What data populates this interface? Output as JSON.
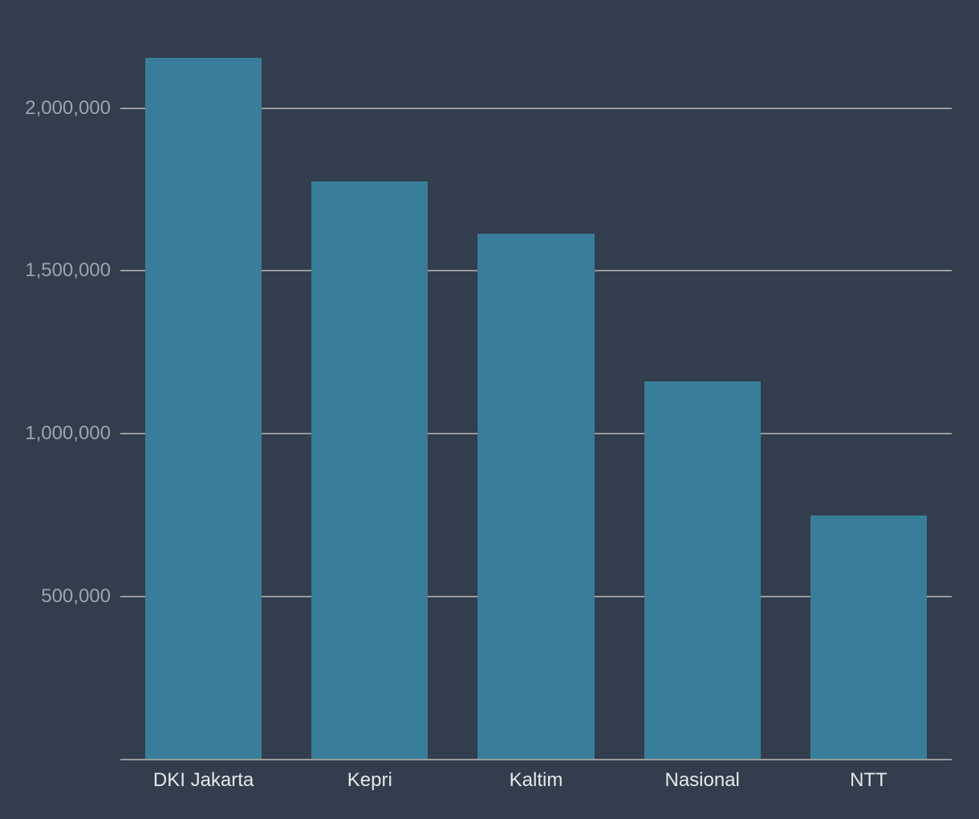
{
  "chart_data": {
    "type": "bar",
    "categories": [
      "DKI Jakarta",
      "Kepri",
      "Kaltim",
      "Nasional",
      "NTT"
    ],
    "values": [
      2155000,
      1774000,
      1615000,
      1161000,
      748000
    ],
    "title": "",
    "xlabel": "",
    "ylabel": "",
    "ylim": [
      0,
      2330000
    ],
    "yticks": [
      {
        "value": 500000,
        "label": "500,000"
      },
      {
        "value": 1000000,
        "label": "1,000,000"
      },
      {
        "value": 1500000,
        "label": "1,500,000"
      },
      {
        "value": 2000000,
        "label": "2,000,000"
      }
    ],
    "grid": true,
    "legend_position": "none",
    "colors": {
      "background": "#323d4d",
      "bar": "#387e9a",
      "gridline": "#9a9a9a",
      "ytick_label": "#9ea4ab",
      "xtick_label": "#e6e8ea"
    }
  }
}
